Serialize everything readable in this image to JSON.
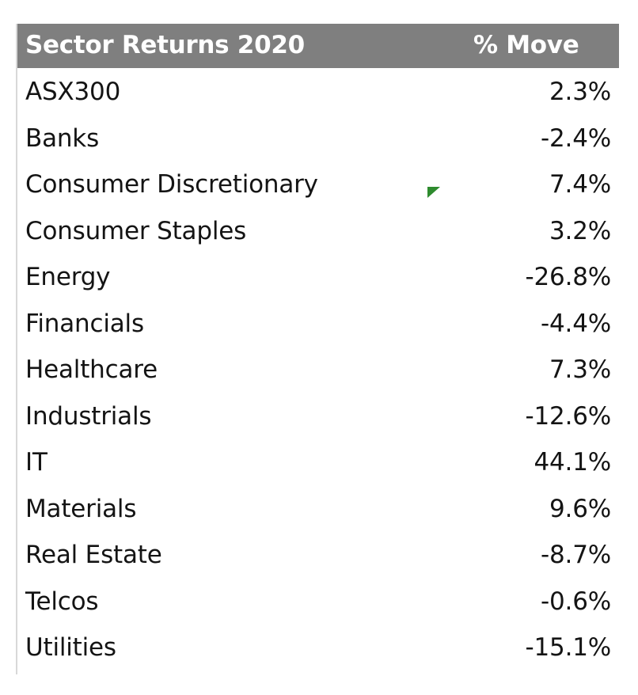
{
  "chart_data": {
    "type": "table",
    "columns": [
      "Sector Returns 2020",
      "% Move"
    ],
    "rows": [
      {
        "sector": "ASX300",
        "move": "2.3%",
        "value": 2.3
      },
      {
        "sector": "Banks",
        "move": "-2.4%",
        "value": -2.4
      },
      {
        "sector": "Consumer Discretionary",
        "move": "7.4%",
        "value": 7.4
      },
      {
        "sector": "Consumer Staples",
        "move": "3.2%",
        "value": 3.2
      },
      {
        "sector": "Energy",
        "move": "-26.8%",
        "value": -26.8
      },
      {
        "sector": "Financials",
        "move": "-4.4%",
        "value": -4.4
      },
      {
        "sector": "Healthcare",
        "move": "7.3%",
        "value": 7.3
      },
      {
        "sector": "Industrials",
        "move": "-12.6%",
        "value": -12.6
      },
      {
        "sector": "IT",
        "move": "44.1%",
        "value": 44.1
      },
      {
        "sector": "Materials",
        "move": "9.6%",
        "value": 9.6
      },
      {
        "sector": "Real Estate",
        "move": "-8.7%",
        "value": -8.7
      },
      {
        "sector": "Telcos",
        "move": "-0.6%",
        "value": -0.6
      },
      {
        "sector": "Utilities",
        "move": "-15.1%",
        "value": -15.1
      }
    ]
  },
  "colors": {
    "header_bg": "#7f7f7f",
    "header_text": "#ffffff",
    "cell_text": "#141414",
    "comment_indicator": "#2e8b2e"
  },
  "icons": {
    "comment_indicator": "comment-indicator-icon"
  }
}
